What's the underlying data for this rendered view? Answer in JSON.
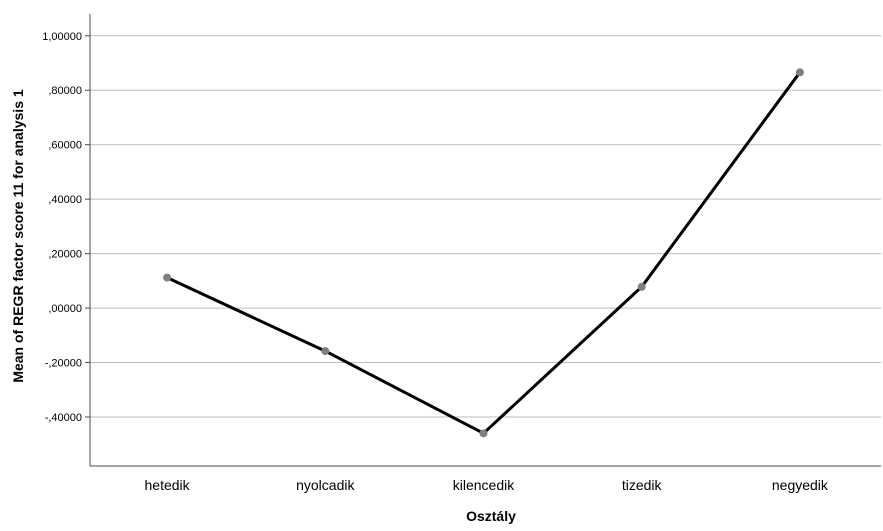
{
  "chart_data": {
    "type": "line",
    "title": "",
    "xlabel": "Osztály",
    "ylabel": "Mean of REGR factor score  11 for analysis 1",
    "categories": [
      "hetedik",
      "nyolcadik",
      "kilencedik",
      "tizedik",
      "negyedik"
    ],
    "values": [
      0.112,
      -0.158,
      -0.46,
      0.078,
      0.866
    ],
    "ylim": [
      -0.58,
      1.08
    ],
    "yticks": [
      1.0,
      0.8,
      0.6,
      0.4,
      0.2,
      0.0,
      -0.2,
      -0.4
    ],
    "ytick_labels": [
      "1,00000",
      ",80000",
      ",60000",
      ",40000",
      ",20000",
      ",00000",
      "-,20000",
      "-,40000"
    ],
    "grid": "horizontal",
    "legend": "none",
    "colors": {
      "line": "#000000",
      "marker": "#7f7f7f",
      "grid": "#bdbdbd",
      "axis": "#4d4d4d"
    }
  }
}
